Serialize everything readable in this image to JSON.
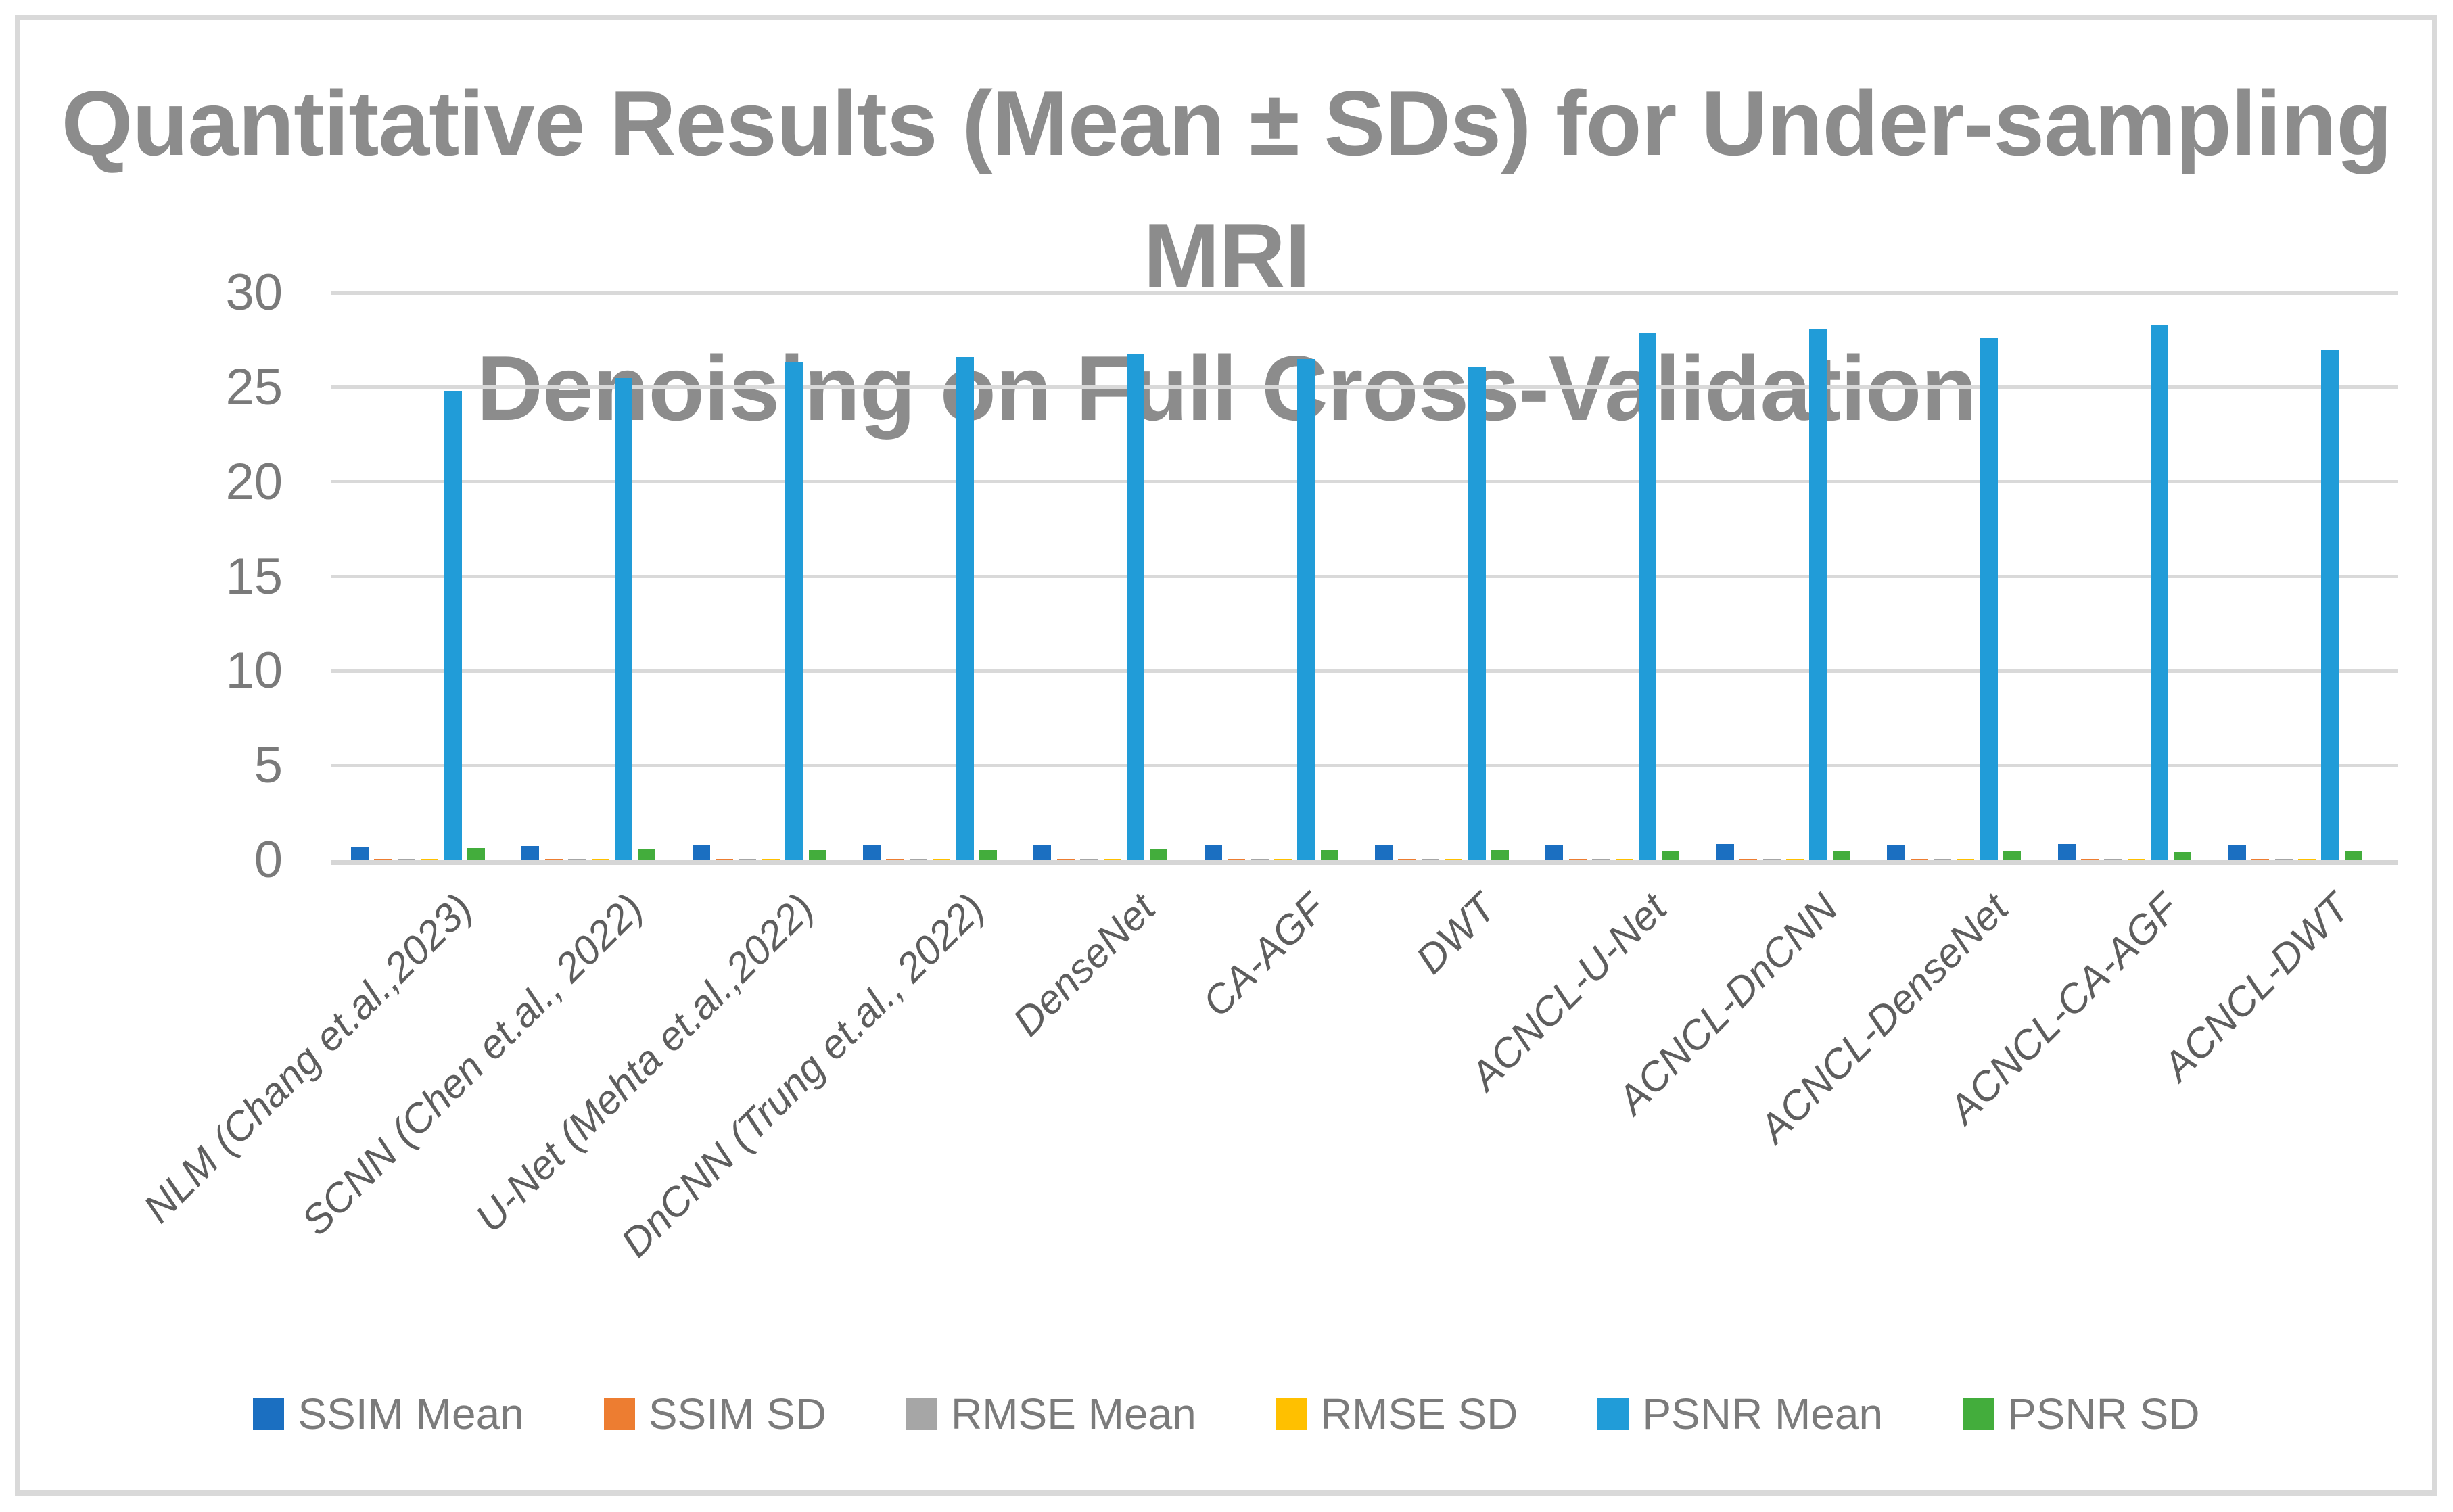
{
  "chart": {
    "title_line1": "Quantitative Results (Mean ± SDs) for Under-sampling MRI",
    "title_line2": "Denoising on Full Cross-Validation",
    "title_color": "#8C8C8C",
    "gridline_color": "#D9D9D9",
    "axis_label_color": "#5E5E5E",
    "tick_label_color": "#7A7A7A"
  },
  "chart_data": {
    "type": "bar",
    "title": "Quantitative Results (Mean ± SDs) for Under-sampling MRI Denoising on Full Cross-Validation",
    "xlabel": "",
    "ylabel": "",
    "ylim": [
      0,
      30
    ],
    "yticks": [
      0,
      5,
      10,
      15,
      20,
      25,
      30
    ],
    "grid": true,
    "legend_position": "bottom",
    "categories": [
      "NLM (Chang et.al.,2023)",
      "SCNN (Chen et.al., 2022)",
      "U-Net (Mehta et.al.,2022)",
      "DnCNN (Trung et.al., 2022)",
      "DenseNet",
      "CA-AGF",
      "DWT",
      "ACNCL-U-Net",
      "ACNCL-DnCNN",
      "ACNCL-DenseNet",
      "ACNCL-CA-AGF",
      "ACNCL-DWT"
    ],
    "series": [
      {
        "name": "SSIM Mean",
        "color": "#1B6FC1",
        "values": [
          0.72,
          0.74,
          0.78,
          0.8,
          0.8,
          0.78,
          0.77,
          0.82,
          0.85,
          0.84,
          0.86,
          0.83
        ]
      },
      {
        "name": "SSIM SD",
        "color": "#ED7D31",
        "values": [
          0.02,
          0.02,
          0.02,
          0.02,
          0.02,
          0.02,
          0.02,
          0.02,
          0.02,
          0.02,
          0.02,
          0.02
        ]
      },
      {
        "name": "RMSE Mean",
        "color": "#A6A6A6",
        "values": [
          0.05,
          0.05,
          0.05,
          0.05,
          0.05,
          0.05,
          0.05,
          0.04,
          0.04,
          0.04,
          0.04,
          0.04
        ]
      },
      {
        "name": "RMSE SD",
        "color": "#FFC000",
        "values": [
          0.02,
          0.02,
          0.02,
          0.02,
          0.02,
          0.02,
          0.02,
          0.02,
          0.02,
          0.02,
          0.02,
          0.02
        ]
      },
      {
        "name": "PSNR Mean",
        "color": "#219CD8",
        "values": [
          24.8,
          25.5,
          26.3,
          26.6,
          26.8,
          26.5,
          26.1,
          27.9,
          28.1,
          27.6,
          28.3,
          27.0
        ]
      },
      {
        "name": "PSNR SD",
        "color": "#43AD3C",
        "values": [
          0.64,
          0.62,
          0.55,
          0.55,
          0.58,
          0.55,
          0.52,
          0.46,
          0.48,
          0.48,
          0.44,
          0.45
        ]
      }
    ]
  }
}
